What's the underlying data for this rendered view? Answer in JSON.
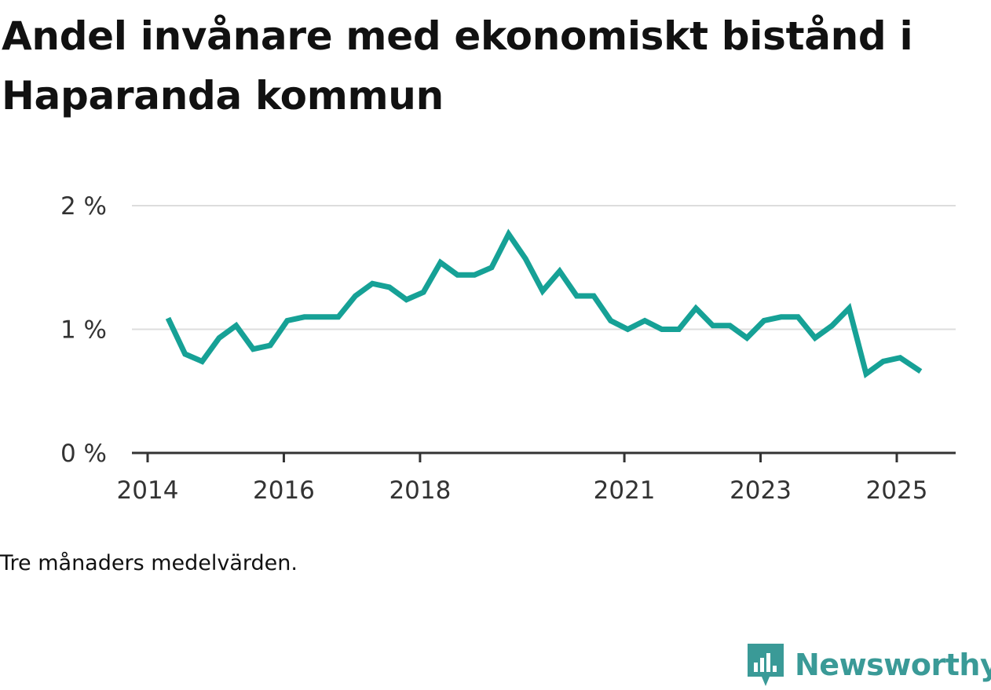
{
  "title": "Andel invånare med ekonomiskt bistånd i Haparanda kommun",
  "note": "Tre månaders medelvärden.",
  "brand": {
    "name": "Newsworthy",
    "icon": "newsworthy-logo-icon",
    "color": "#3a9a97"
  },
  "chart_data": {
    "type": "line",
    "title": "Andel invånare med ekonomiskt bistånd i Haparanda kommun",
    "xlabel": "",
    "ylabel": "",
    "ylim": [
      0,
      2
    ],
    "grid": true,
    "line_color": "#16a196",
    "y_ticks": [
      {
        "value": 0,
        "label": "0 %"
      },
      {
        "value": 1,
        "label": "1 %"
      },
      {
        "value": 2,
        "label": "2 %"
      }
    ],
    "x_ticks": [
      {
        "value": 2014.0,
        "label": "2014"
      },
      {
        "value": 2016.0,
        "label": "2016"
      },
      {
        "value": 2018.0,
        "label": "2018"
      },
      {
        "value": 2021.0,
        "label": "2021"
      },
      {
        "value": 2023.0,
        "label": "2023"
      },
      {
        "value": 2025.0,
        "label": "2025"
      }
    ],
    "series": [
      {
        "x": [
          2014.3,
          2014.55,
          2014.8,
          2015.05,
          2015.3,
          2015.55,
          2015.8,
          2016.05,
          2016.3,
          2016.55,
          2016.8,
          2017.05,
          2017.3,
          2017.55,
          2017.8,
          2018.05,
          2018.3,
          2018.55,
          2018.8,
          2019.05,
          2019.3,
          2019.55,
          2019.8,
          2020.05,
          2020.3,
          2020.55,
          2020.8,
          2021.05,
          2021.3,
          2021.55,
          2021.8,
          2022.05,
          2022.3,
          2022.55,
          2022.8,
          2023.05,
          2023.3,
          2023.55,
          2023.8,
          2024.05,
          2024.3,
          2024.55,
          2024.8,
          2025.05,
          2025.35
        ],
        "values": [
          1.09,
          0.8,
          0.74,
          0.93,
          1.03,
          0.84,
          0.87,
          1.07,
          1.1,
          1.1,
          1.1,
          1.27,
          1.37,
          1.34,
          1.24,
          1.3,
          1.54,
          1.44,
          1.44,
          1.5,
          1.77,
          1.57,
          1.31,
          1.47,
          1.27,
          1.27,
          1.07,
          1.0,
          1.07,
          1.0,
          1.0,
          1.17,
          1.03,
          1.03,
          0.93,
          1.07,
          1.1,
          1.1,
          0.93,
          1.03,
          1.17,
          0.64,
          0.74,
          0.77,
          0.66
        ]
      }
    ]
  }
}
